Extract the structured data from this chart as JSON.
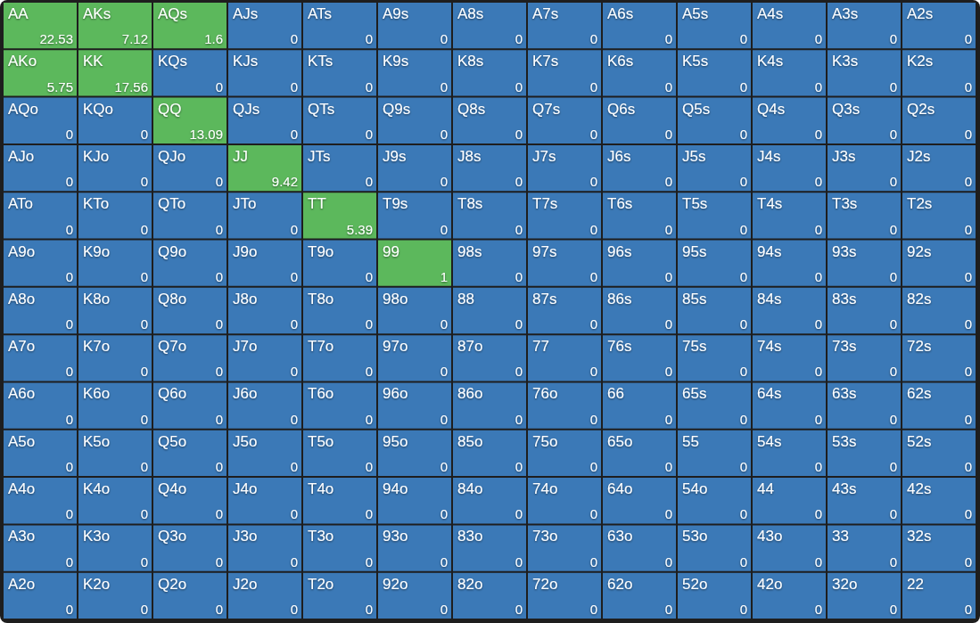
{
  "chart_data": {
    "type": "heatmap",
    "data_labels": true,
    "categories": [
      null,
      null,
      null,
      null,
      null,
      null,
      null,
      null,
      null,
      null,
      null,
      null,
      null
    ],
    "y_categories": [
      null,
      null,
      null,
      null,
      null,
      null,
      null,
      null,
      null,
      null,
      null,
      null,
      null
    ],
    "cells": [
      [
        22.53,
        7.12,
        1.6,
        0,
        0,
        0,
        0,
        0,
        0,
        0,
        0,
        0,
        0
      ],
      [
        5.75,
        17.56,
        0,
        0,
        0,
        0,
        0,
        0,
        0,
        0,
        0,
        0,
        0
      ],
      [
        0,
        0,
        13.09,
        0,
        0,
        0,
        0,
        0,
        0,
        0,
        0,
        0,
        0
      ],
      [
        0,
        0,
        0,
        9.42,
        0,
        0,
        0,
        0,
        0,
        0,
        0,
        0,
        0
      ],
      [
        0,
        0,
        0,
        0,
        5.39,
        0,
        0,
        0,
        0,
        0,
        0,
        0,
        0
      ],
      [
        0,
        0,
        0,
        0,
        0,
        1,
        0,
        0,
        0,
        0,
        0,
        0,
        0
      ],
      [
        0,
        0,
        0,
        0,
        0,
        0,
        0,
        0,
        0,
        0,
        0,
        0,
        0
      ],
      [
        0,
        0,
        0,
        0,
        0,
        0,
        0,
        0,
        0,
        0,
        0,
        0,
        0
      ],
      [
        0,
        0,
        0,
        0,
        0,
        0,
        0,
        0,
        0,
        0,
        0,
        0,
        0
      ],
      [
        0,
        0,
        0,
        0,
        0,
        0,
        0,
        0,
        0,
        0,
        0,
        0,
        0
      ],
      [
        0,
        0,
        0,
        0,
        0,
        0,
        0,
        0,
        0,
        0,
        0,
        0,
        0
      ],
      [
        0,
        0,
        0,
        0,
        0,
        0,
        0,
        0,
        0,
        0,
        0,
        0,
        0
      ],
      [
        0,
        0,
        0,
        0,
        0,
        0,
        0,
        0,
        0,
        0,
        0,
        0,
        0
      ]
    ],
    "annotations": [
      "AA",
      "AKs",
      "AQs",
      "AJs",
      "ATs",
      "A9s",
      "A8s",
      "A7s",
      "A6s",
      "A5s",
      "A4s",
      "A3s",
      "A2s",
      "AKo",
      "KK",
      "KQs",
      "KJs",
      "KTs",
      "K9s",
      "K8s",
      "K7s",
      "K6s",
      "K5s",
      "K4s",
      "K3s",
      "K2s",
      "AQo",
      "KQo",
      "QQ",
      "QJs",
      "QTs",
      "Q9s",
      "Q8s",
      "Q7s",
      "Q6s",
      "Q5s",
      "Q4s",
      "Q3s",
      "Q2s",
      "AJo",
      "KJo",
      "QJo",
      "JJ",
      "JTs",
      "J9s",
      "J8s",
      "J7s",
      "J6s",
      "J5s",
      "J4s",
      "J3s",
      "J2s",
      "ATo",
      "KTo",
      "QTo",
      "JTo",
      "TT",
      "T9s",
      "T8s",
      "T7s",
      "T6s",
      "T5s",
      "T4s",
      "T3s",
      "T2s",
      "A9o",
      "K9o",
      "Q9o",
      "J9o",
      "T9o",
      "99",
      "98s",
      "97s",
      "96s",
      "95s",
      "94s",
      "93s",
      "92s",
      "A8o",
      "K8o",
      "Q8o",
      "J8o",
      "T8o",
      "98o",
      "88",
      "87s",
      "86s",
      "85s",
      "84s",
      "83s",
      "82s",
      "A7o",
      "K7o",
      "Q7o",
      "J7o",
      "T7o",
      "97o",
      "87o",
      "77",
      "76s",
      "75s",
      "74s",
      "73s",
      "72s",
      "A6o",
      "K6o",
      "Q6o",
      "J6o",
      "T6o",
      "96o",
      "86o",
      "76o",
      "66",
      "65s",
      "64s",
      "63s",
      "62s",
      "A5o",
      "K5o",
      "Q5o",
      "J5o",
      "T5o",
      "95o",
      "85o",
      "75o",
      "65o",
      "55",
      "54s",
      "53s",
      "52s",
      "A4o",
      "K4o",
      "Q4o",
      "J4o",
      "T4o",
      "94o",
      "84o",
      "74o",
      "64o",
      "54o",
      "44",
      "43s",
      "42s",
      "A3o",
      "K3o",
      "Q3o",
      "J3o",
      "T3o",
      "93o",
      "83o",
      "73o",
      "63o",
      "53o",
      "43o",
      "33",
      "32s",
      "A2o",
      "K2o",
      "Q2o",
      "J2o",
      "T2o",
      "92o",
      "82o",
      "72o",
      "62o",
      "52o",
      "42o",
      "32o",
      "22"
    ],
    "colors": [
      [
        "#5cb85c",
        "#5cb85c",
        "#5cb85c",
        "#3b79b7",
        "#3b79b7",
        "#3b79b7",
        "#3b79b7",
        "#3b79b7",
        "#3b79b7",
        "#3b79b7",
        "#3b79b7",
        "#3b79b7",
        "#3b79b7"
      ],
      [
        "#5cb85c",
        "#5cb85c",
        "#3b79b7",
        "#3b79b7",
        "#3b79b7",
        "#3b79b7",
        "#3b79b7",
        "#3b79b7",
        "#3b79b7",
        "#3b79b7",
        "#3b79b7",
        "#3b79b7",
        "#3b79b7"
      ],
      [
        "#3b79b7",
        "#3b79b7",
        "#5cb85c",
        "#3b79b7",
        "#3b79b7",
        "#3b79b7",
        "#3b79b7",
        "#3b79b7",
        "#3b79b7",
        "#3b79b7",
        "#3b79b7",
        "#3b79b7",
        "#3b79b7"
      ],
      [
        "#3b79b7",
        "#3b79b7",
        "#3b79b7",
        "#5cb85c",
        "#3b79b7",
        "#3b79b7",
        "#3b79b7",
        "#3b79b7",
        "#3b79b7",
        "#3b79b7",
        "#3b79b7",
        "#3b79b7",
        "#3b79b7"
      ],
      [
        "#3b79b7",
        "#3b79b7",
        "#3b79b7",
        "#3b79b7",
        "#5cb85c",
        "#3b79b7",
        "#3b79b7",
        "#3b79b7",
        "#3b79b7",
        "#3b79b7",
        "#3b79b7",
        "#3b79b7",
        "#3b79b7"
      ],
      [
        "#3b79b7",
        "#3b79b7",
        "#3b79b7",
        "#3b79b7",
        "#3b79b7",
        "#5cb85c",
        "#3b79b7",
        "#3b79b7",
        "#3b79b7",
        "#3b79b7",
        "#3b79b7",
        "#3b79b7",
        "#3b79b7"
      ],
      [
        "#3b79b7",
        "#3b79b7",
        "#3b79b7",
        "#3b79b7",
        "#3b79b7",
        "#3b79b7",
        "#3b79b7",
        "#3b79b7",
        "#3b79b7",
        "#3b79b7",
        "#3b79b7",
        "#3b79b7",
        "#3b79b7"
      ],
      [
        "#3b79b7",
        "#3b79b7",
        "#3b79b7",
        "#3b79b7",
        "#3b79b7",
        "#3b79b7",
        "#3b79b7",
        "#3b79b7",
        "#3b79b7",
        "#3b79b7",
        "#3b79b7",
        "#3b79b7",
        "#3b79b7"
      ],
      [
        "#3b79b7",
        "#3b79b7",
        "#3b79b7",
        "#3b79b7",
        "#3b79b7",
        "#3b79b7",
        "#3b79b7",
        "#3b79b7",
        "#3b79b7",
        "#3b79b7",
        "#3b79b7",
        "#3b79b7",
        "#3b79b7"
      ],
      [
        "#3b79b7",
        "#3b79b7",
        "#3b79b7",
        "#3b79b7",
        "#3b79b7",
        "#3b79b7",
        "#3b79b7",
        "#3b79b7",
        "#3b79b7",
        "#3b79b7",
        "#3b79b7",
        "#3b79b7",
        "#3b79b7"
      ],
      [
        "#3b79b7",
        "#3b79b7",
        "#3b79b7",
        "#3b79b7",
        "#3b79b7",
        "#3b79b7",
        "#3b79b7",
        "#3b79b7",
        "#3b79b7",
        "#3b79b7",
        "#3b79b7",
        "#3b79b7",
        "#3b79b7"
      ],
      [
        "#3b79b7",
        "#3b79b7",
        "#3b79b7",
        "#3b79b7",
        "#3b79b7",
        "#3b79b7",
        "#3b79b7",
        "#3b79b7",
        "#3b79b7",
        "#3b79b7",
        "#3b79b7",
        "#3b79b7",
        "#3b79b7"
      ],
      [
        "#3b79b7",
        "#3b79b7",
        "#3b79b7",
        "#3b79b7",
        "#3b79b7",
        "#3b79b7",
        "#3b79b7",
        "#3b79b7",
        "#3b79b7",
        "#3b79b7",
        "#3b79b7",
        "#3b79b7",
        "#3b79b7"
      ]
    ]
  }
}
